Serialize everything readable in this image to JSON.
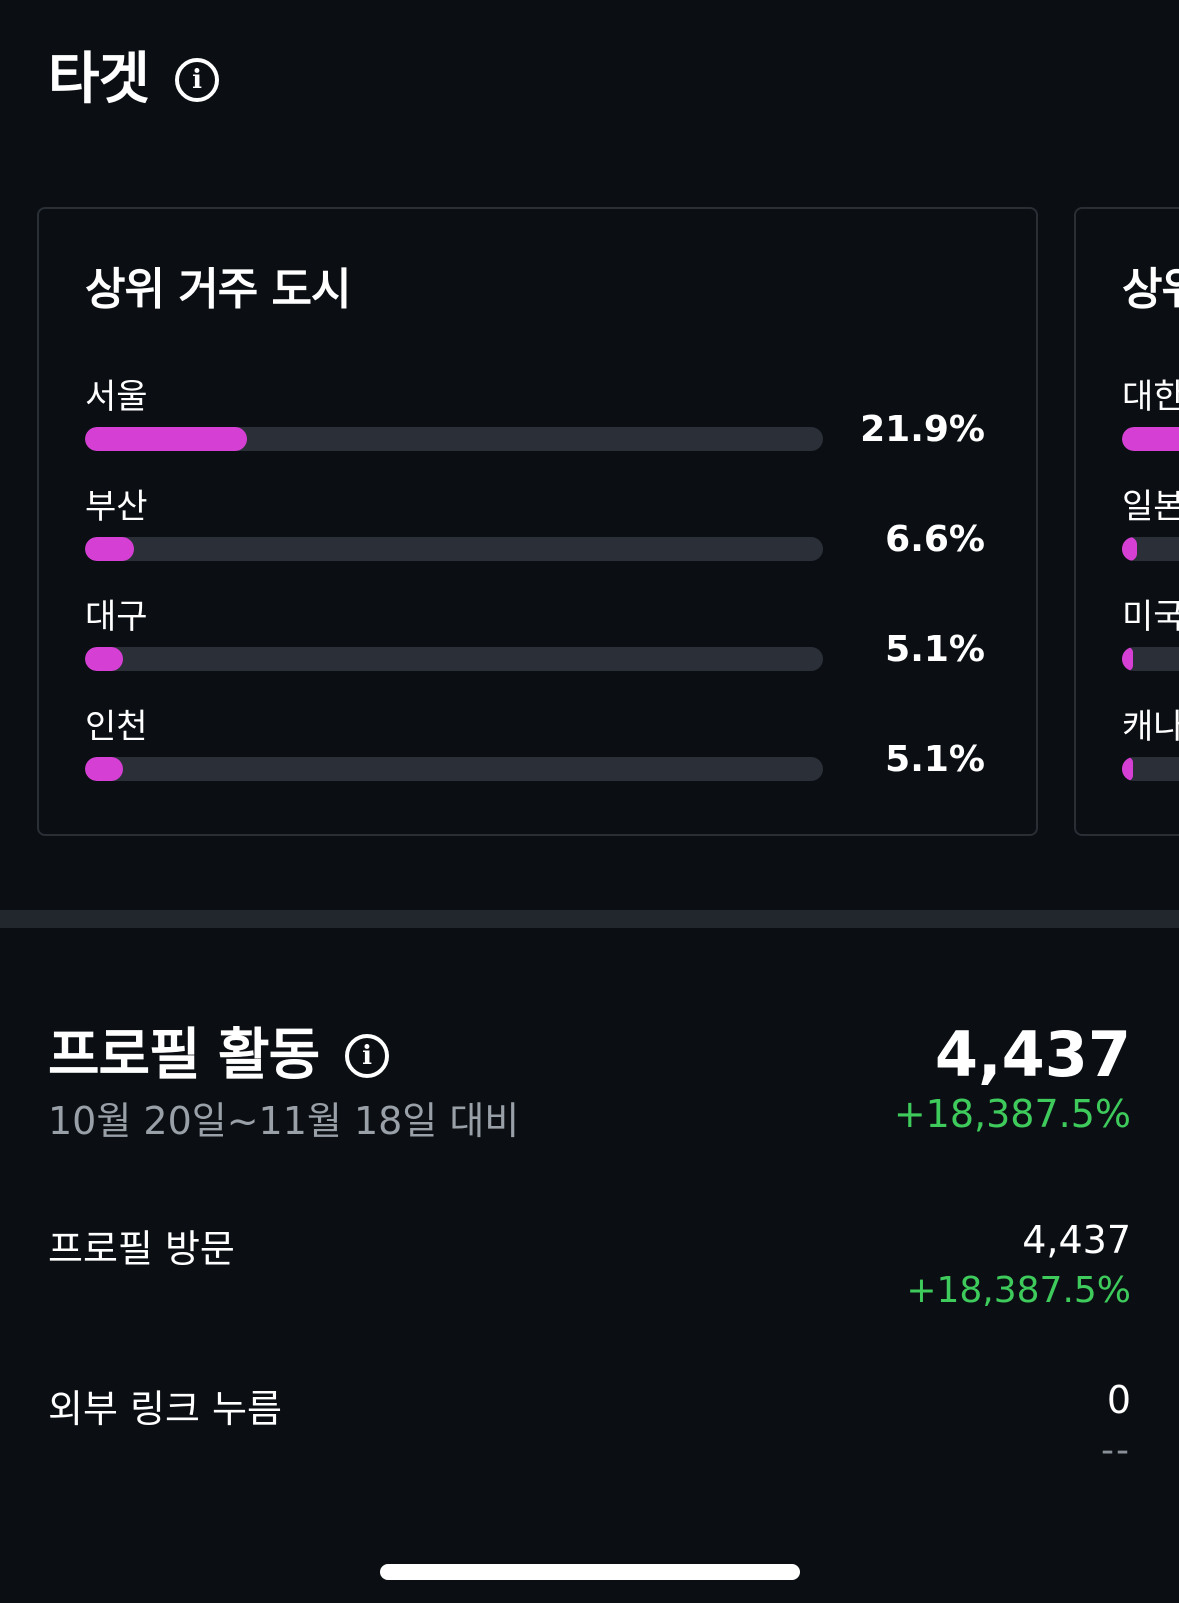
{
  "target": {
    "title": "타겟",
    "info_icon": "info-icon"
  },
  "cities_card": {
    "title": "상위 거주 도시",
    "items": [
      {
        "label": "서울",
        "value_text": "21.9%",
        "percent": 21.9
      },
      {
        "label": "부산",
        "value_text": "6.6%",
        "percent": 6.6
      },
      {
        "label": "대구",
        "value_text": "5.1%",
        "percent": 5.1
      },
      {
        "label": "인천",
        "value_text": "5.1%",
        "percent": 5.1
      }
    ]
  },
  "countries_card": {
    "title": "상위",
    "items": [
      {
        "label": "대한",
        "percent": 80
      },
      {
        "label": "일본",
        "percent": 2
      },
      {
        "label": "미국",
        "percent": 1.5
      },
      {
        "label": "캐나",
        "percent": 1.5
      }
    ]
  },
  "profile_activity": {
    "title": "프로필 활동",
    "info_icon": "info-icon",
    "subtitle": "10월 20일~11월 18일 대비",
    "total": "4,437",
    "total_change": "+18,387.5%",
    "metrics": [
      {
        "label": "프로필 방문",
        "value": "4,437",
        "change": "+18,387.5%"
      },
      {
        "label": "외부 링크 누름",
        "value": "0",
        "change": "--"
      }
    ]
  },
  "colors": {
    "background": "#0b0f14",
    "bar_fill": "#d63fd4",
    "bar_track": "#2b2f38",
    "positive": "#3ecb5c",
    "muted": "#9aa0a8"
  }
}
